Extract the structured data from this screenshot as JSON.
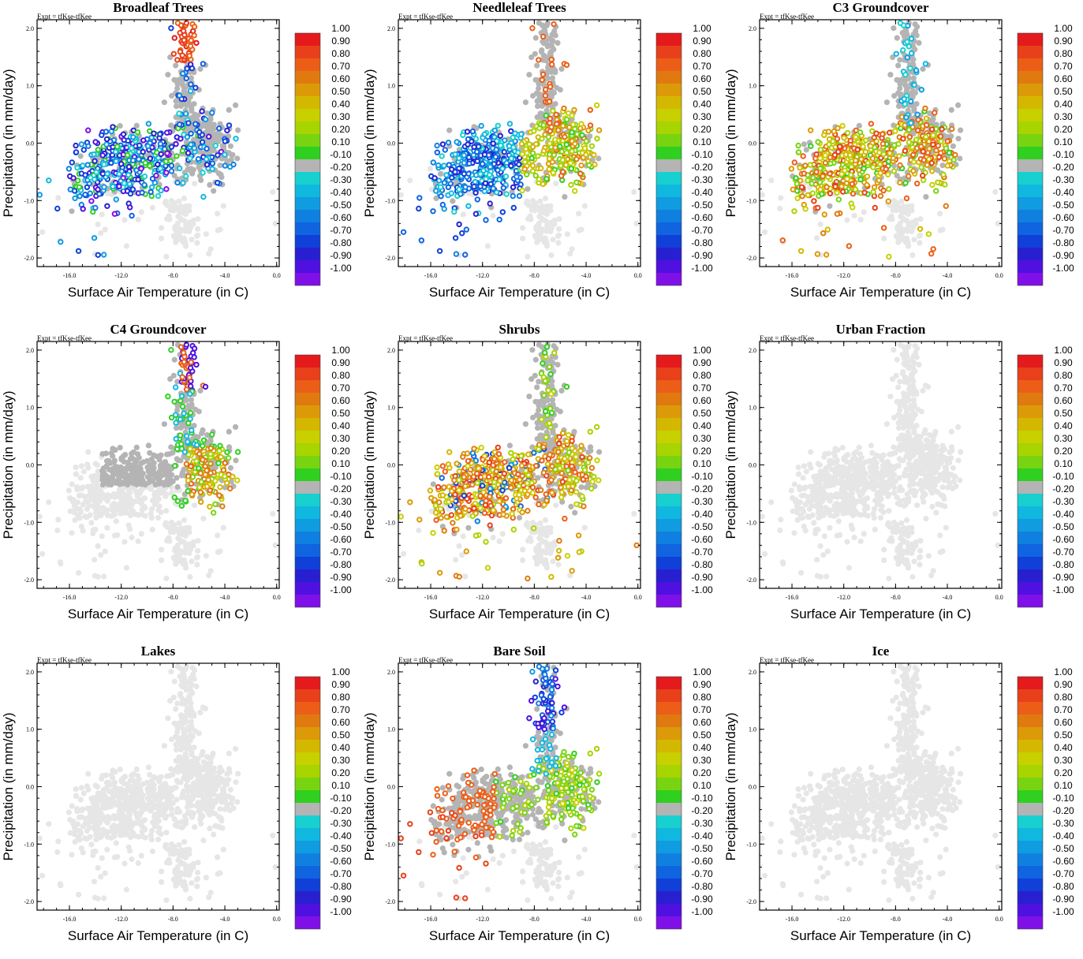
{
  "figure": {
    "expt_label": "Expt = tfKse-tfKee",
    "xlabel": "Surface Air Temperature (in C)",
    "ylabel": "Precipitation (in mm/day)",
    "x_ticks": [
      "-16.0",
      "-12.0",
      "-8.0",
      "-4.0",
      "0.0"
    ],
    "y_ticks": [
      "2.0",
      "1.0",
      "0.0",
      "-1.0",
      "-2.0"
    ],
    "colorbar_labels": [
      "1.00",
      "0.90",
      "0.80",
      "0.70",
      "0.60",
      "0.50",
      "0.40",
      "0.30",
      "0.20",
      "0.10",
      "-0.10",
      "-0.20",
      "-0.30",
      "-0.40",
      "-0.50",
      "-0.60",
      "-0.70",
      "-0.80",
      "-0.90",
      "-1.00"
    ],
    "colorbar_colors": [
      "#e41a1c",
      "#e8401a",
      "#ec5e17",
      "#e07a10",
      "#dc9a08",
      "#d4b800",
      "#c8d000",
      "#a8d400",
      "#78d410",
      "#30d020",
      "#b4b4b4",
      "#18d0d0",
      "#10b8e0",
      "#109ce0",
      "#1080e0",
      "#1064e0",
      "#1040d8",
      "#2820d0",
      "#5010e0",
      "#8010e8"
    ],
    "background_color": "#e6e6e6"
  },
  "chart_data": [
    {
      "type": "scatter",
      "title": "Broadleaf Trees",
      "xlabel": "Surface Air Temperature (in C)",
      "ylabel": "Precipitation (in mm/day)",
      "xlim": [
        -18.5,
        0.2
      ],
      "ylim": [
        -2.15,
        2.15
      ],
      "color_range": [
        -1.0,
        1.0
      ],
      "highlight": "broadleaf"
    },
    {
      "type": "scatter",
      "title": "Needleleaf Trees",
      "xlabel": "Surface Air Temperature (in C)",
      "ylabel": "Precipitation (in mm/day)",
      "xlim": [
        -18.5,
        0.2
      ],
      "ylim": [
        -2.15,
        2.15
      ],
      "color_range": [
        -1.0,
        1.0
      ],
      "highlight": "needleleaf"
    },
    {
      "type": "scatter",
      "title": "C3 Groundcover",
      "xlabel": "Surface Air Temperature (in C)",
      "ylabel": "Precipitation (in mm/day)",
      "xlim": [
        -18.5,
        0.2
      ],
      "ylim": [
        -2.15,
        2.15
      ],
      "color_range": [
        -1.0,
        1.0
      ],
      "highlight": "c3"
    },
    {
      "type": "scatter",
      "title": "C4 Groundcover",
      "xlabel": "Surface Air Temperature (in C)",
      "ylabel": "Precipitation (in mm/day)",
      "xlim": [
        -18.5,
        0.2
      ],
      "ylim": [
        -2.15,
        2.15
      ],
      "color_range": [
        -1.0,
        1.0
      ],
      "highlight": "c4"
    },
    {
      "type": "scatter",
      "title": "Shrubs",
      "xlabel": "Surface Air Temperature (in C)",
      "ylabel": "Precipitation (in mm/day)",
      "xlim": [
        -18.5,
        0.2
      ],
      "ylim": [
        -2.15,
        2.15
      ],
      "color_range": [
        -1.0,
        1.0
      ],
      "highlight": "shrubs"
    },
    {
      "type": "scatter",
      "title": "Urban Fraction",
      "xlabel": "Surface Air Temperature (in C)",
      "ylabel": "Precipitation (in mm/day)",
      "xlim": [
        -18.5,
        0.2
      ],
      "ylim": [
        -2.15,
        2.15
      ],
      "color_range": [
        -1.0,
        1.0
      ],
      "highlight": "none"
    },
    {
      "type": "scatter",
      "title": "Lakes",
      "xlabel": "Surface Air Temperature (in C)",
      "ylabel": "Precipitation (in mm/day)",
      "xlim": [
        -18.5,
        0.2
      ],
      "ylim": [
        -2.15,
        2.15
      ],
      "color_range": [
        -1.0,
        1.0
      ],
      "highlight": "none"
    },
    {
      "type": "scatter",
      "title": "Bare Soil",
      "xlabel": "Surface Air Temperature (in C)",
      "ylabel": "Precipitation (in mm/day)",
      "xlim": [
        -18.5,
        0.2
      ],
      "ylim": [
        -2.15,
        2.15
      ],
      "color_range": [
        -1.0,
        1.0
      ],
      "highlight": "baresoil"
    },
    {
      "type": "scatter",
      "title": "Ice",
      "xlabel": "Surface Air Temperature (in C)",
      "ylabel": "Precipitation (in mm/day)",
      "xlim": [
        -18.5,
        0.2
      ],
      "ylim": [
        -2.15,
        2.15
      ],
      "color_range": [
        -1.0,
        1.0
      ],
      "highlight": "none"
    }
  ]
}
